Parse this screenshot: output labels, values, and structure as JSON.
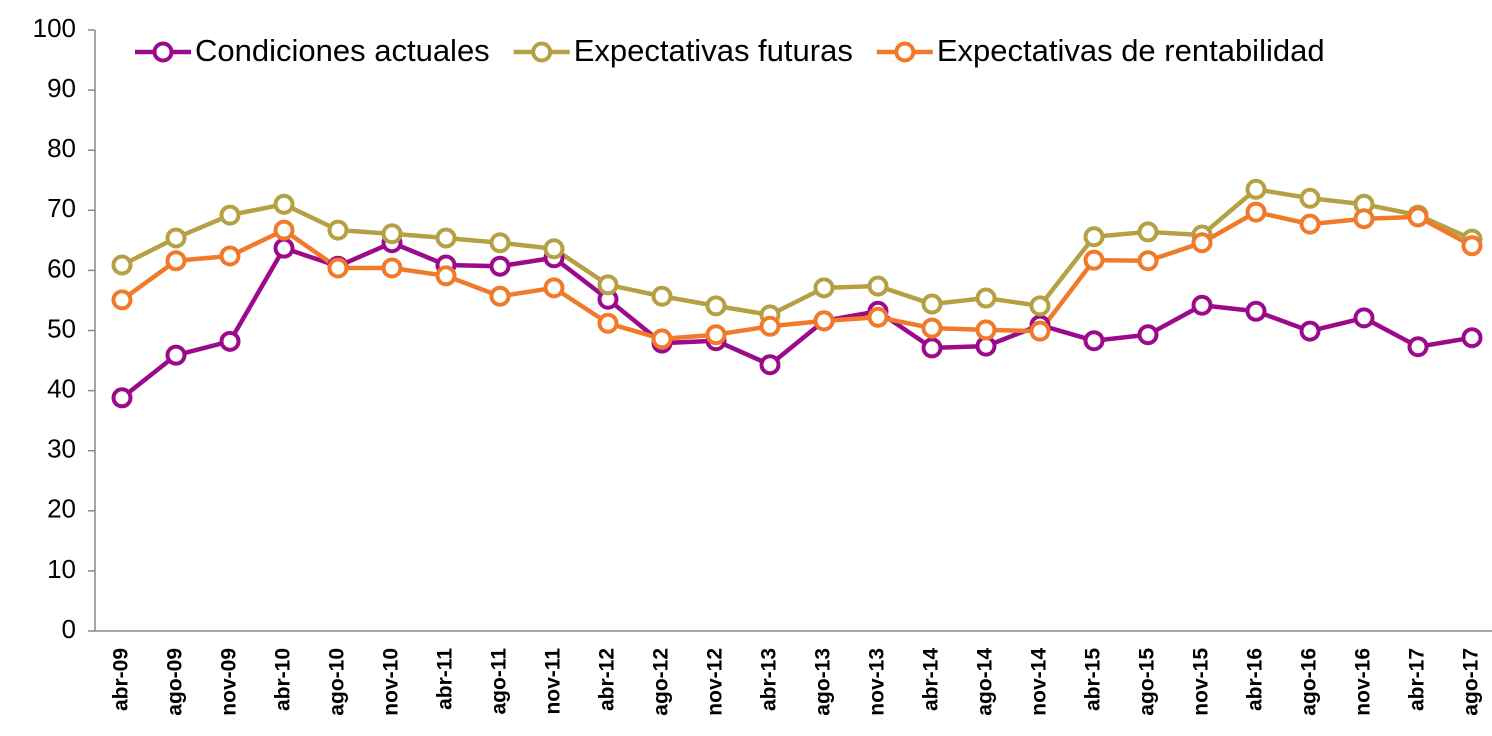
{
  "chart_data": {
    "type": "line",
    "categories": [
      "abr-09",
      "ago-09",
      "nov-09",
      "abr-10",
      "ago-10",
      "nov-10",
      "abr-11",
      "ago-11",
      "nov-11",
      "abr-12",
      "ago-12",
      "nov-12",
      "abr-13",
      "ago-13",
      "nov-13",
      "abr-14",
      "ago-14",
      "nov-14",
      "abr-15",
      "ago-15",
      "nov-15",
      "abr-16",
      "ago-16",
      "nov-16",
      "abr-17",
      "ago-17"
    ],
    "series": [
      {
        "name": "Condiciones actuales",
        "color": "#9c0a8c",
        "values": [
          38.8,
          45.9,
          48.2,
          63.7,
          60.7,
          64.6,
          60.9,
          60.7,
          62.1,
          55.2,
          47.9,
          48.3,
          44.3,
          51.6,
          53.2,
          47.1,
          47.4,
          50.9,
          48.3,
          49.3,
          54.2,
          53.2,
          49.9,
          52.1,
          47.3,
          48.8
        ]
      },
      {
        "name": "Expectativas futuras",
        "color": "#b5a043",
        "values": [
          60.9,
          65.4,
          69.2,
          71.0,
          66.7,
          66.1,
          65.4,
          64.6,
          63.6,
          57.6,
          55.7,
          54.1,
          52.6,
          57.1,
          57.4,
          54.4,
          55.4,
          54.1,
          65.6,
          66.4,
          65.9,
          73.5,
          72.0,
          71.0,
          69.2,
          65.2
        ]
      },
      {
        "name": "Expectativas de rentabilidad",
        "color": "#f07a2a",
        "values": [
          55.1,
          61.6,
          62.4,
          66.7,
          60.4,
          60.4,
          59.1,
          55.7,
          57.1,
          51.2,
          48.6,
          49.3,
          50.7,
          51.6,
          52.2,
          50.4,
          50.1,
          49.9,
          61.7,
          61.6,
          64.6,
          69.7,
          67.7,
          68.6,
          68.9,
          64.1
        ]
      }
    ],
    "ylim": [
      0,
      100
    ],
    "yticks": [
      0,
      10,
      20,
      30,
      40,
      50,
      60,
      70,
      80,
      90,
      100
    ],
    "grid": false,
    "legend": "top"
  }
}
